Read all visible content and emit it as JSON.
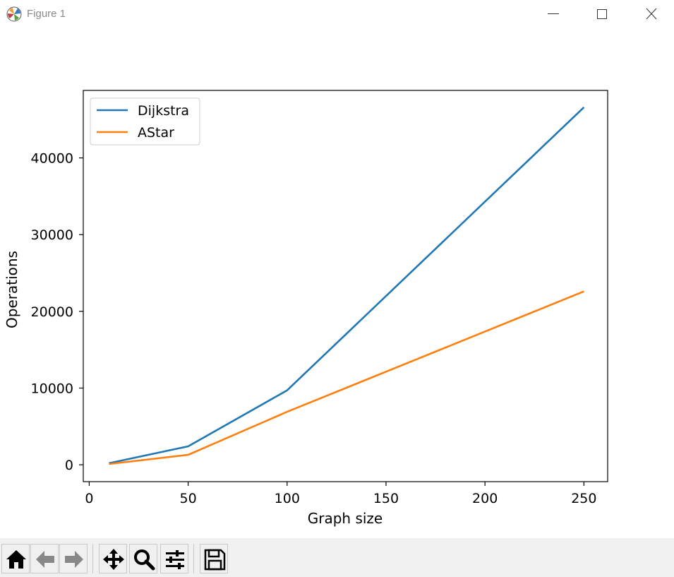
{
  "window": {
    "title": "Figure 1",
    "controls": [
      "minimize",
      "maximize",
      "close"
    ],
    "icon": "matplotlib-icon"
  },
  "toolbar": {
    "buttons": [
      {
        "name": "home",
        "icon": "home-icon"
      },
      {
        "name": "back",
        "icon": "back-arrow-icon"
      },
      {
        "name": "forward",
        "icon": "forward-arrow-icon"
      },
      {
        "name": "pan",
        "icon": "move-icon"
      },
      {
        "name": "zoom",
        "icon": "magnifier-icon"
      },
      {
        "name": "configure-subplots",
        "icon": "sliders-icon"
      },
      {
        "name": "save",
        "icon": "floppy-disk-icon"
      }
    ]
  },
  "chart_data": {
    "type": "line",
    "xlabel": "Graph size",
    "ylabel": "Operations",
    "xlim": [
      -3,
      262
    ],
    "ylim": [
      -2200,
      48800
    ],
    "xticks": [
      0,
      50,
      100,
      150,
      200,
      250
    ],
    "yticks": [
      0,
      10000,
      20000,
      30000,
      40000
    ],
    "x": [
      10,
      50,
      100,
      250
    ],
    "series": [
      {
        "name": "Dijkstra",
        "color": "#1f77b4",
        "values": [
          200,
          2400,
          9700,
          46600
        ]
      },
      {
        "name": "AStar",
        "color": "#ff7f0e",
        "values": [
          100,
          1300,
          6900,
          22600
        ]
      }
    ],
    "legend": "upper-left",
    "grid": false
  }
}
